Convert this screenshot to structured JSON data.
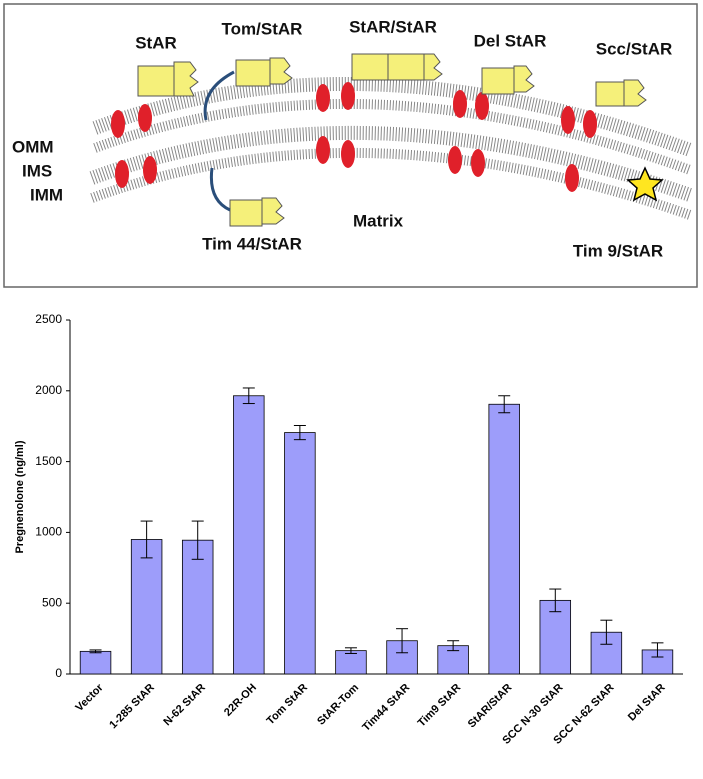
{
  "diagram": {
    "labels": [
      "StAR",
      "Tom/StAR",
      "StAR/StAR",
      "Del StAR",
      "Scc/StAR",
      "OMM",
      "IMS",
      "IMM",
      "Tim 44/StAR",
      "Matrix",
      "Tim 9/StAR"
    ]
  },
  "chart_data": {
    "type": "bar",
    "y_label": "Pregnenolone (ng/ml)",
    "categories": [
      "Vector",
      "1-285 StAR",
      "N-62 StAR",
      "22R-OH",
      "Tom StAR",
      "StAR-Tom",
      "Tim44 StAR",
      "Tim9 StAR",
      "StAR/StAR",
      "SCC N-30 StAR",
      "SCC N-62 StAR",
      "Del StAR"
    ],
    "values": [
      160,
      950,
      945,
      1965,
      1705,
      165,
      235,
      200,
      1905,
      520,
      295,
      170
    ],
    "errors": [
      10,
      130,
      135,
      55,
      50,
      20,
      85,
      35,
      60,
      80,
      85,
      50
    ],
    "color": "#9d9dfa",
    "ylim": [
      0,
      2500
    ],
    "yticks": [
      0,
      500,
      1000,
      1500,
      2000,
      2500
    ]
  }
}
